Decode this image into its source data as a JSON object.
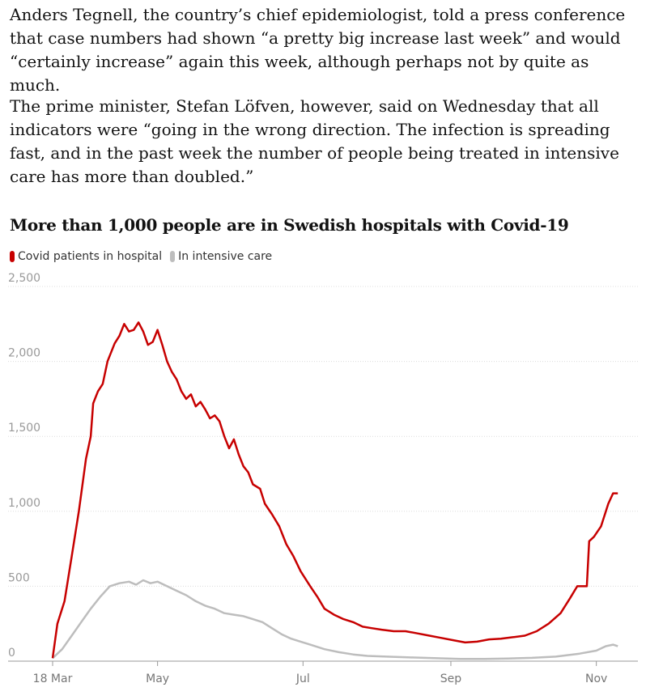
{
  "article": {
    "paragraphs": [
      "Anders Tegnell, the country’s chief epidemiologist, told a press conference that case numbers had shown “a pretty big increase last week” and would “certainly increase” again this week, although perhaps not by quite as much.",
      "The prime minister, Stefan Löfven, however, said on Wednesday that all indicators were “going in the wrong direction. The infection is spreading fast, and in the past week the number of people being treated in intensive care has more than doubled.”"
    ]
  },
  "chart_data": {
    "type": "line",
    "title": "More than 1,000 people are in Swedish hospitals with Covid-19",
    "legend_position": "top-left",
    "grid": true,
    "ylim": [
      0,
      2500
    ],
    "yticks": [
      0,
      500,
      1000,
      1500,
      2000,
      2500
    ],
    "ytick_labels": [
      "0",
      "500",
      "1,000",
      "1,500",
      "2,000",
      "2,500"
    ],
    "xlim": [
      "2020-03-18",
      "2020-11-13"
    ],
    "xticks": [
      {
        "date": "2020-03-18",
        "label": "18 Mar"
      },
      {
        "date": "2020-05-01",
        "label": "May"
      },
      {
        "date": "2020-07-01",
        "label": "Jul"
      },
      {
        "date": "2020-09-01",
        "label": "Sep"
      },
      {
        "date": "2020-11-01",
        "label": "Nov"
      }
    ],
    "series": [
      {
        "name": "Covid patients in hospital",
        "color": "#c70000",
        "points": [
          [
            "2020-03-18",
            20
          ],
          [
            "2020-03-20",
            250
          ],
          [
            "2020-03-23",
            400
          ],
          [
            "2020-03-26",
            700
          ],
          [
            "2020-03-29",
            1000
          ],
          [
            "2020-04-01",
            1350
          ],
          [
            "2020-04-03",
            1500
          ],
          [
            "2020-04-04",
            1720
          ],
          [
            "2020-04-06",
            1800
          ],
          [
            "2020-04-08",
            1850
          ],
          [
            "2020-04-10",
            2000
          ],
          [
            "2020-04-13",
            2120
          ],
          [
            "2020-04-15",
            2170
          ],
          [
            "2020-04-17",
            2250
          ],
          [
            "2020-04-19",
            2200
          ],
          [
            "2020-04-21",
            2210
          ],
          [
            "2020-04-23",
            2260
          ],
          [
            "2020-04-25",
            2200
          ],
          [
            "2020-04-27",
            2110
          ],
          [
            "2020-04-29",
            2130
          ],
          [
            "2020-05-01",
            2210
          ],
          [
            "2020-05-03",
            2110
          ],
          [
            "2020-05-05",
            2000
          ],
          [
            "2020-05-07",
            1930
          ],
          [
            "2020-05-09",
            1880
          ],
          [
            "2020-05-11",
            1800
          ],
          [
            "2020-05-13",
            1750
          ],
          [
            "2020-05-15",
            1780
          ],
          [
            "2020-05-17",
            1700
          ],
          [
            "2020-05-19",
            1730
          ],
          [
            "2020-05-21",
            1680
          ],
          [
            "2020-05-23",
            1620
          ],
          [
            "2020-05-25",
            1640
          ],
          [
            "2020-05-27",
            1600
          ],
          [
            "2020-05-29",
            1500
          ],
          [
            "2020-05-31",
            1420
          ],
          [
            "2020-06-02",
            1480
          ],
          [
            "2020-06-04",
            1380
          ],
          [
            "2020-06-06",
            1300
          ],
          [
            "2020-06-08",
            1260
          ],
          [
            "2020-06-10",
            1180
          ],
          [
            "2020-06-13",
            1150
          ],
          [
            "2020-06-15",
            1050
          ],
          [
            "2020-06-18",
            980
          ],
          [
            "2020-06-21",
            900
          ],
          [
            "2020-06-24",
            780
          ],
          [
            "2020-06-27",
            700
          ],
          [
            "2020-06-30",
            600
          ],
          [
            "2020-07-04",
            500
          ],
          [
            "2020-07-07",
            430
          ],
          [
            "2020-07-10",
            350
          ],
          [
            "2020-07-14",
            310
          ],
          [
            "2020-07-18",
            280
          ],
          [
            "2020-07-22",
            260
          ],
          [
            "2020-07-26",
            230
          ],
          [
            "2020-07-30",
            220
          ],
          [
            "2020-08-03",
            210
          ],
          [
            "2020-08-08",
            200
          ],
          [
            "2020-08-13",
            200
          ],
          [
            "2020-08-18",
            185
          ],
          [
            "2020-08-23",
            170
          ],
          [
            "2020-08-28",
            155
          ],
          [
            "2020-09-02",
            140
          ],
          [
            "2020-09-07",
            125
          ],
          [
            "2020-09-12",
            130
          ],
          [
            "2020-09-17",
            145
          ],
          [
            "2020-09-22",
            150
          ],
          [
            "2020-09-27",
            160
          ],
          [
            "2020-10-02",
            170
          ],
          [
            "2020-10-07",
            200
          ],
          [
            "2020-10-12",
            250
          ],
          [
            "2020-10-17",
            320
          ],
          [
            "2020-10-21",
            420
          ],
          [
            "2020-10-24",
            500
          ],
          [
            "2020-10-28",
            500
          ],
          [
            "2020-10-29",
            800
          ],
          [
            "2020-10-31",
            830
          ],
          [
            "2020-11-03",
            900
          ],
          [
            "2020-11-06",
            1050
          ],
          [
            "2020-11-08",
            1120
          ],
          [
            "2020-11-10",
            1120
          ]
        ]
      },
      {
        "name": "In intensive care",
        "color": "#bdbdbd",
        "points": [
          [
            "2020-03-18",
            20
          ],
          [
            "2020-03-22",
            80
          ],
          [
            "2020-03-26",
            170
          ],
          [
            "2020-03-30",
            260
          ],
          [
            "2020-04-03",
            350
          ],
          [
            "2020-04-07",
            430
          ],
          [
            "2020-04-11",
            500
          ],
          [
            "2020-04-15",
            520
          ],
          [
            "2020-04-19",
            530
          ],
          [
            "2020-04-22",
            510
          ],
          [
            "2020-04-25",
            540
          ],
          [
            "2020-04-28",
            520
          ],
          [
            "2020-05-01",
            530
          ],
          [
            "2020-05-05",
            500
          ],
          [
            "2020-05-09",
            470
          ],
          [
            "2020-05-13",
            440
          ],
          [
            "2020-05-17",
            400
          ],
          [
            "2020-05-21",
            370
          ],
          [
            "2020-05-25",
            350
          ],
          [
            "2020-05-29",
            320
          ],
          [
            "2020-06-02",
            310
          ],
          [
            "2020-06-06",
            300
          ],
          [
            "2020-06-10",
            280
          ],
          [
            "2020-06-14",
            260
          ],
          [
            "2020-06-18",
            220
          ],
          [
            "2020-06-22",
            180
          ],
          [
            "2020-06-26",
            150
          ],
          [
            "2020-06-30",
            130
          ],
          [
            "2020-07-04",
            110
          ],
          [
            "2020-07-10",
            80
          ],
          [
            "2020-07-16",
            60
          ],
          [
            "2020-07-22",
            45
          ],
          [
            "2020-07-28",
            35
          ],
          [
            "2020-08-05",
            30
          ],
          [
            "2020-08-15",
            25
          ],
          [
            "2020-08-25",
            20
          ],
          [
            "2020-09-05",
            15
          ],
          [
            "2020-09-15",
            15
          ],
          [
            "2020-09-25",
            18
          ],
          [
            "2020-10-05",
            22
          ],
          [
            "2020-10-15",
            30
          ],
          [
            "2020-10-25",
            50
          ],
          [
            "2020-11-01",
            70
          ],
          [
            "2020-11-05",
            100
          ],
          [
            "2020-11-08",
            110
          ],
          [
            "2020-11-10",
            100
          ]
        ]
      }
    ]
  }
}
